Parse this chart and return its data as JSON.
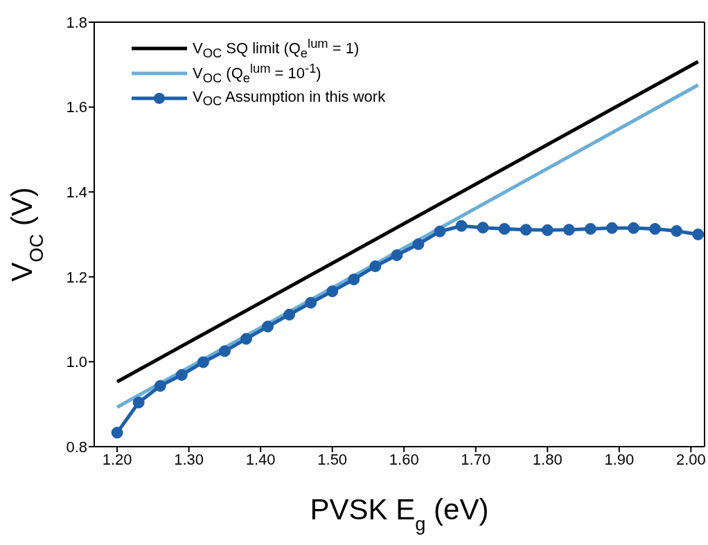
{
  "chart_data": {
    "type": "line",
    "xlabel": "PVSK E$_{g}$ (eV)",
    "ylabel": "V$_{OC}$ (V)",
    "xlim": [
      1.168,
      2.019
    ],
    "xticks": [
      {
        "value": 1.2,
        "label": "1.20"
      },
      {
        "value": 1.3,
        "label": "1.30"
      },
      {
        "value": 1.4,
        "label": "1.40"
      },
      {
        "value": 1.5,
        "label": "1.50"
      },
      {
        "value": 1.6,
        "label": "1.60"
      },
      {
        "value": 1.7,
        "label": "1.70"
      },
      {
        "value": 1.8,
        "label": "1.80"
      },
      {
        "value": 1.9,
        "label": "1.90"
      },
      {
        "value": 2.0,
        "label": "2.00"
      }
    ],
    "ylim": [
      0.8,
      1.8
    ],
    "yticks": [
      {
        "value": 0.8,
        "label": "0.8"
      },
      {
        "value": 1.0,
        "label": "1.0"
      },
      {
        "value": 1.2,
        "label": "1.2"
      },
      {
        "value": 1.4,
        "label": "1.4"
      },
      {
        "value": 1.6,
        "label": "1.6"
      },
      {
        "value": 1.8,
        "label": "1.8"
      }
    ],
    "grid": false,
    "legend": "top left",
    "line_style": "solid",
    "series": [
      {
        "name": "V$_{OC}$ SQ limit (Q$_{e}$$^{lum}$ = 1)",
        "color": "#000000",
        "marker": "none",
        "x": [
          1.2,
          2.01
        ],
        "values": [
          0.953,
          1.707
        ]
      },
      {
        "name": "V$_{OC}$ (Q$_{e}$$^{lum}$ = 10$^{-1}$)",
        "color": "#6baed6",
        "marker": "none",
        "x": [
          1.2,
          2.01
        ],
        "values": [
          0.893,
          1.652
        ]
      },
      {
        "name": "V$_{OC}$ Assumption in this work",
        "color": "#1f5fa8",
        "marker": "circle",
        "x": [
          1.2,
          1.23,
          1.26,
          1.29,
          1.32,
          1.35,
          1.38,
          1.41,
          1.44,
          1.47,
          1.5,
          1.53,
          1.56,
          1.59,
          1.62,
          1.65,
          1.68,
          1.71,
          1.74,
          1.77,
          1.8,
          1.83,
          1.86,
          1.89,
          1.92,
          1.95,
          1.98,
          2.01
        ],
        "values": [
          0.833,
          0.904,
          0.943,
          0.969,
          0.999,
          1.025,
          1.054,
          1.083,
          1.111,
          1.139,
          1.166,
          1.194,
          1.225,
          1.251,
          1.277,
          1.307,
          1.32,
          1.316,
          1.313,
          1.311,
          1.31,
          1.311,
          1.313,
          1.315,
          1.315,
          1.313,
          1.308,
          1.3
        ]
      }
    ]
  }
}
